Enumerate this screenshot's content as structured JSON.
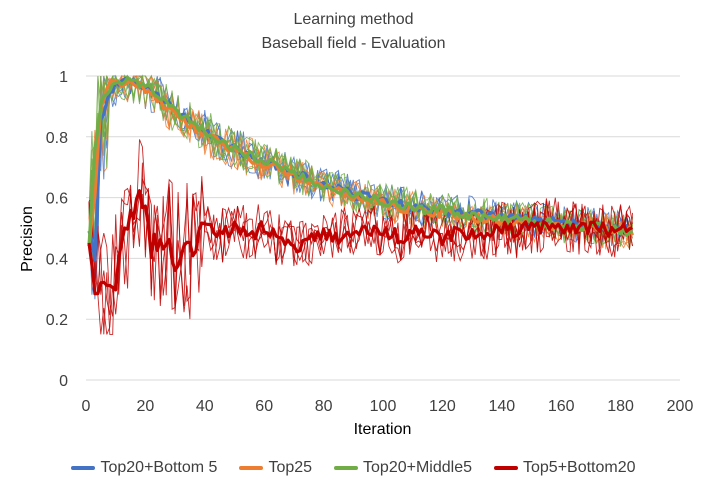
{
  "chart_data": {
    "type": "line",
    "title": "Learning method",
    "subtitle": "Baseball field - Evaluation",
    "xlabel": "Iteration",
    "ylabel": "Precision",
    "xlim": [
      0,
      200
    ],
    "ylim": [
      0,
      1
    ],
    "xticks": [
      0,
      20,
      40,
      60,
      80,
      100,
      120,
      140,
      160,
      180,
      200
    ],
    "yticks": [
      0,
      0.2,
      0.4,
      0.6,
      0.8,
      1
    ],
    "yticklabels": [
      "0",
      "0.2",
      "0.4",
      "0.6",
      "0.8",
      "1"
    ],
    "grid": true,
    "legend_position": "bottom",
    "series": [
      {
        "name": "Top20+Bottom 5",
        "color": "#4472C4",
        "x": [
          1,
          3,
          5,
          8,
          10,
          14,
          18,
          22,
          26,
          30,
          35,
          40,
          45,
          50,
          55,
          60,
          65,
          70,
          75,
          80,
          85,
          90,
          95,
          100,
          105,
          110,
          115,
          120,
          125,
          130,
          135,
          140,
          145,
          150,
          155,
          160,
          165,
          170,
          175,
          180,
          184
        ],
        "values": [
          0.5,
          0.4,
          0.85,
          0.95,
          0.97,
          0.98,
          0.97,
          0.95,
          0.92,
          0.88,
          0.85,
          0.82,
          0.79,
          0.76,
          0.74,
          0.72,
          0.7,
          0.68,
          0.66,
          0.64,
          0.63,
          0.61,
          0.6,
          0.59,
          0.58,
          0.57,
          0.56,
          0.56,
          0.55,
          0.55,
          0.54,
          0.54,
          0.53,
          0.53,
          0.52,
          0.52,
          0.51,
          0.51,
          0.5,
          0.5,
          0.49
        ]
      },
      {
        "name": "Top25",
        "color": "#ED7D31",
        "x": [
          1,
          3,
          5,
          8,
          10,
          14,
          18,
          22,
          26,
          30,
          35,
          40,
          45,
          50,
          55,
          60,
          65,
          70,
          75,
          80,
          85,
          90,
          95,
          100,
          105,
          110,
          115,
          120,
          125,
          130,
          135,
          140,
          145,
          150,
          155,
          160,
          165,
          170,
          175,
          180,
          184
        ],
        "values": [
          0.45,
          0.6,
          0.9,
          0.97,
          0.98,
          0.98,
          0.97,
          0.95,
          0.91,
          0.87,
          0.84,
          0.81,
          0.78,
          0.75,
          0.73,
          0.71,
          0.69,
          0.67,
          0.65,
          0.63,
          0.62,
          0.6,
          0.59,
          0.58,
          0.57,
          0.56,
          0.55,
          0.55,
          0.54,
          0.53,
          0.53,
          0.52,
          0.52,
          0.51,
          0.51,
          0.5,
          0.5,
          0.5,
          0.49,
          0.49,
          0.49
        ]
      },
      {
        "name": "Top20+Middle5",
        "color": "#70AD47",
        "x": [
          1,
          3,
          5,
          8,
          10,
          14,
          18,
          22,
          26,
          30,
          35,
          40,
          45,
          50,
          55,
          60,
          65,
          70,
          75,
          80,
          85,
          90,
          95,
          100,
          105,
          110,
          115,
          120,
          125,
          130,
          135,
          140,
          145,
          150,
          155,
          160,
          165,
          170,
          175,
          180,
          184
        ],
        "values": [
          0.45,
          0.75,
          0.92,
          0.96,
          0.98,
          0.98,
          0.97,
          0.96,
          0.92,
          0.88,
          0.85,
          0.82,
          0.79,
          0.76,
          0.74,
          0.72,
          0.7,
          0.68,
          0.66,
          0.64,
          0.63,
          0.61,
          0.6,
          0.59,
          0.58,
          0.57,
          0.56,
          0.56,
          0.55,
          0.54,
          0.54,
          0.53,
          0.53,
          0.52,
          0.52,
          0.51,
          0.51,
          0.5,
          0.5,
          0.49,
          0.49
        ]
      },
      {
        "name": "Top5+Bottom20",
        "color": "#C00000",
        "x": [
          1,
          3,
          5,
          8,
          10,
          12,
          15,
          18,
          20,
          22,
          25,
          28,
          30,
          32,
          35,
          38,
          40,
          45,
          50,
          55,
          60,
          65,
          70,
          75,
          80,
          85,
          90,
          95,
          100,
          105,
          110,
          115,
          120,
          125,
          130,
          135,
          140,
          145,
          150,
          155,
          160,
          165,
          170,
          175,
          180,
          184
        ],
        "values": [
          0.48,
          0.33,
          0.3,
          0.3,
          0.33,
          0.45,
          0.52,
          0.6,
          0.62,
          0.45,
          0.42,
          0.48,
          0.4,
          0.45,
          0.42,
          0.48,
          0.5,
          0.47,
          0.5,
          0.48,
          0.5,
          0.46,
          0.44,
          0.45,
          0.48,
          0.47,
          0.5,
          0.48,
          0.49,
          0.47,
          0.48,
          0.49,
          0.47,
          0.48,
          0.47,
          0.48,
          0.5,
          0.49,
          0.5,
          0.51,
          0.51,
          0.5,
          0.5,
          0.49,
          0.49,
          0.48
        ]
      }
    ]
  }
}
